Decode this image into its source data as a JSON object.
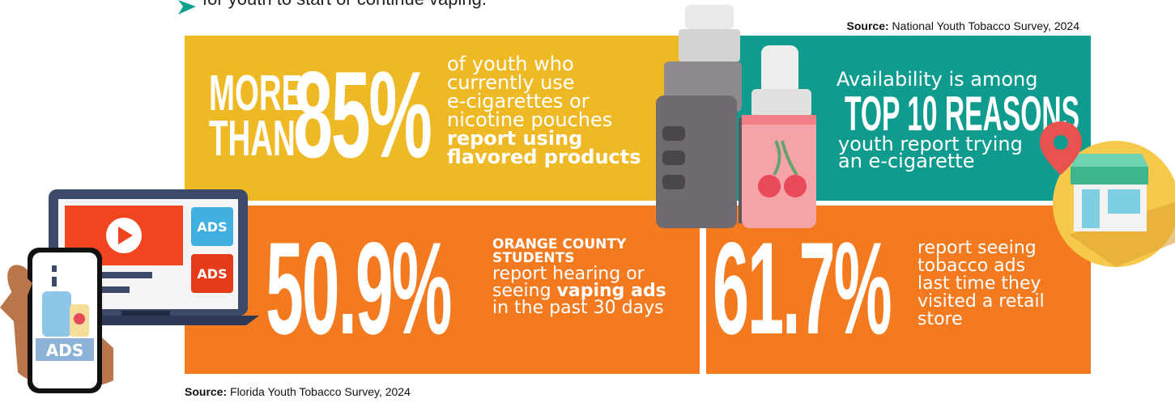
{
  "header": {
    "partial_line": "for youth to start or continue vaping."
  },
  "sources": {
    "top_label": "Source:",
    "top_text": " National Youth Tobacco Survey, 2024",
    "bottom_label": "Source:",
    "bottom_text": " Florida Youth Tobacco Survey, 2024"
  },
  "stat_flavored": {
    "prefix_line1": "MORE",
    "prefix_line2": "THAN",
    "big": "85%",
    "lines": [
      "of youth who",
      "currently use",
      "e-cigarettes or",
      "nicotine pouches"
    ],
    "bold_lines": [
      "report using",
      "flavored products"
    ]
  },
  "stat_availability": {
    "line1": "Availability is among",
    "big": "TOP 10 REASONS",
    "line2": "youth report trying",
    "line3": "an e-cigarette"
  },
  "stat_orange_county": {
    "big": "50.9%",
    "bold1": "ORANGE COUNTY",
    "bold2": "STUDENTS",
    "line1": "report hearing or",
    "line2_prefix": "seeing ",
    "line2_bold": "vaping ads",
    "line3": "in the past 30 days"
  },
  "stat_retail": {
    "big": "61.7%",
    "lines": [
      "report seeing",
      "tobacco ads",
      "last time they",
      "visited a retail",
      "store"
    ]
  },
  "illustration": {
    "ads_label_1": "ADS",
    "ads_label_2": "ADS",
    "ads_label_3": "ADS"
  },
  "colors": {
    "yellow": "#EFB926",
    "teal": "#0F9C8F",
    "orange": "#F47A20"
  }
}
